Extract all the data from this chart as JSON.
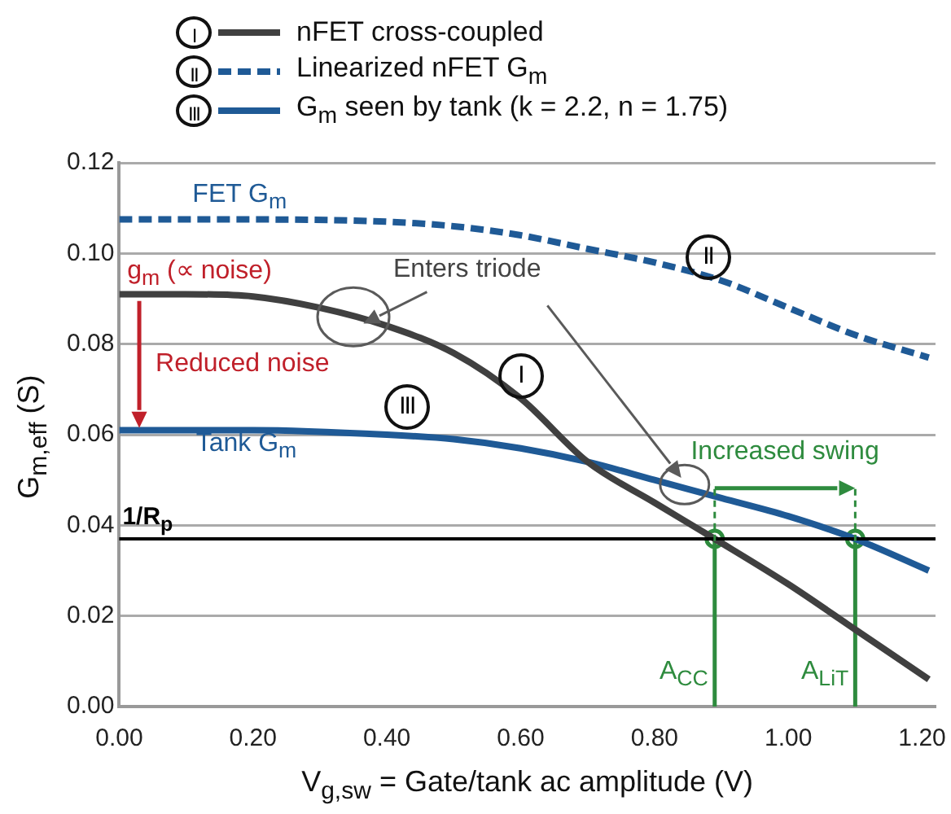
{
  "chart_data": {
    "type": "line",
    "xlabel": "V$_{g,sw}$ = Gate/tank ac amplitude (V)",
    "ylabel": "G$_{m,eff}$ (S)",
    "series": [
      {
        "name": "nFET cross-coupled",
        "color": "#404040",
        "x": [
          0,
          0.1,
          0.2,
          0.3,
          0.4,
          0.5,
          0.6,
          0.7,
          0.8,
          0.89,
          1.0,
          1.1,
          1.21
        ],
        "values": [
          0.091,
          0.091,
          0.0905,
          0.088,
          0.084,
          0.078,
          0.068,
          0.054,
          0.045,
          0.037,
          0.027,
          0.017,
          0.006
        ]
      },
      {
        "name": "Linearized nFET G$_{m}$",
        "color": "#1f5a96",
        "line_style": "dashed",
        "x": [
          0,
          0.2,
          0.4,
          0.5,
          0.6,
          0.7,
          0.8,
          0.9,
          1.0,
          1.1,
          1.21
        ],
        "values": [
          0.1075,
          0.1075,
          0.107,
          0.106,
          0.104,
          0.101,
          0.098,
          0.094,
          0.088,
          0.082,
          0.077
        ]
      },
      {
        "name": "G$_{m}$ seen by tank (k = 2.2, n = 1.75)",
        "color": "#1f5a96",
        "x": [
          0,
          0.2,
          0.4,
          0.5,
          0.6,
          0.7,
          0.8,
          0.9,
          1.0,
          1.1,
          1.21
        ],
        "values": [
          0.061,
          0.061,
          0.06,
          0.059,
          0.057,
          0.054,
          0.05,
          0.046,
          0.042,
          0.037,
          0.03
        ]
      },
      {
        "color": "#2e8b3e",
        "x": [
          0.89,
          0.89
        ],
        "values": [
          0,
          0.037
        ]
      },
      {
        "color": "#2e8b3e",
        "x": [
          1.1,
          1.1
        ],
        "values": [
          0,
          0.037
        ]
      },
      {
        "type": "scatter",
        "marker": "circle",
        "color": "#2e8b3e",
        "x": [
          0.89,
          1.1
        ],
        "values": [
          0.037,
          0.037
        ]
      }
    ],
    "ref_lines": [
      {
        "axis": "y",
        "value": 0.037,
        "label": "1/R$_{p}$",
        "color": "#000000"
      }
    ],
    "xlim": [
      0,
      1.22
    ],
    "xticks": [
      {
        "value": 0,
        "label": "0.00"
      },
      {
        "value": 0.2,
        "label": "0.20"
      },
      {
        "value": 0.4,
        "label": "0.40"
      },
      {
        "value": 0.6,
        "label": "0.60"
      },
      {
        "value": 0.8,
        "label": "0.80"
      },
      {
        "value": 1,
        "label": "1.00"
      },
      {
        "value": 1.2,
        "label": "1.20"
      }
    ],
    "ylim": [
      0,
      0.12
    ],
    "yticks": [
      {
        "value": 0,
        "label": "0.00"
      },
      {
        "value": 0.02,
        "label": "0.02"
      },
      {
        "value": 0.04,
        "label": "0.04"
      },
      {
        "value": 0.06,
        "label": "0.06"
      },
      {
        "value": 0.08,
        "label": "0.08"
      },
      {
        "value": 0.1,
        "label": "0.10"
      },
      {
        "value": 0.12,
        "label": "0.12"
      }
    ],
    "grid": "y",
    "legend": "top",
    "annotations": [
      {
        "text": "I",
        "x": 0.6,
        "y": 0.073
      },
      {
        "text": "II",
        "x": 0.88,
        "y": 0.099
      },
      {
        "text": "III",
        "x": 0.43,
        "y": 0.066
      },
      "FET G$_{m}$",
      "Tank G$_{m}$",
      "g$_{m}$ (∝ noise)",
      {
        "text": "Reduced noise",
        "x": 0.03,
        "y": 0.061
      },
      "Enters triode",
      "Increased swing",
      {
        "text": "A$_{CC}$",
        "x": 0.89,
        "y": 0.007
      },
      {
        "text": "A$_{LiT}$",
        "x": 1.1,
        "y": 0.007
      }
    ]
  }
}
